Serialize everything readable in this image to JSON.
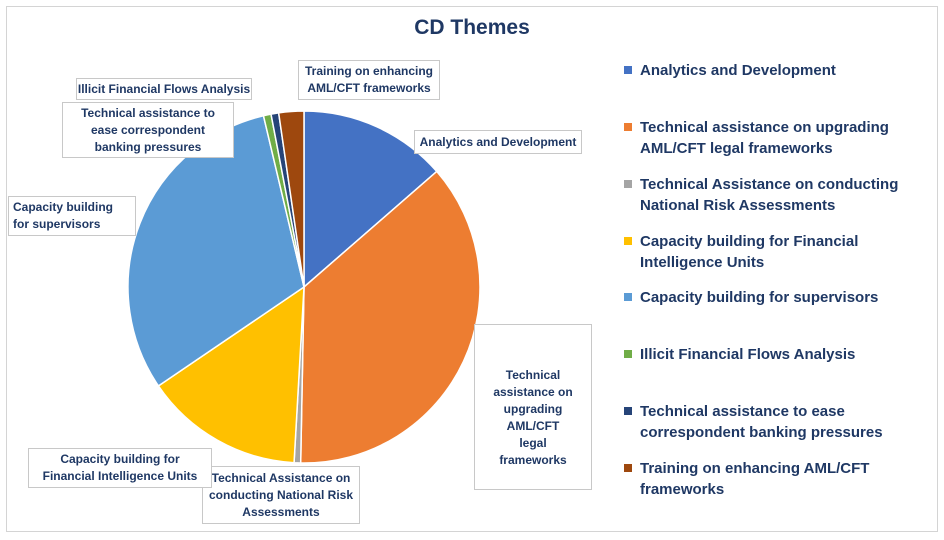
{
  "chart_data": {
    "type": "pie",
    "title": "CD Themes",
    "series": [
      {
        "values": [
          13.6,
          36.7,
          0.6,
          14.6,
          30.8,
          0.7,
          0.7,
          2.3
        ],
        "labels": [
          "Analytics and Development",
          "Technical assistance on upgrading AML/CFT legal frameworks",
          "Technical Assistance on conducting National Risk Assessments",
          "Capacity building for Financial Intelligence Units",
          "Capacity building for supervisors",
          "Illicit Financial Flows Analysis",
          "Technical assistance to ease correspondent banking pressures",
          "Training on enhancing AML/CFT frameworks"
        ],
        "colors": [
          "#4472c4",
          "#ed7d31",
          "#a5a5a5",
          "#ffc000",
          "#5b9bd5",
          "#70ad47",
          "#264478",
          "#9e480e"
        ]
      }
    ],
    "legend": "right"
  },
  "callouts": [
    "Analytics and Development",
    "Technical assistance on upgrading AML/CFT legal frameworks",
    "Technical Assistance on conducting National Risk Assessments",
    "Capacity building for Financial Intelligence Units",
    "Capacity building for supervisors",
    "Illicit Financial Flows Analysis",
    "Technical assistance to ease correspondent banking pressures",
    "Training on enhancing AML/CFT frameworks"
  ],
  "legend_items": [
    {
      "label": "Analytics and Development",
      "color": "#4472c4"
    },
    {
      "label": "Technical assistance on upgrading AML/CFT legal frameworks",
      "color": "#ed7d31"
    },
    {
      "label": "Technical Assistance on conducting National Risk Assessments",
      "color": "#a5a5a5"
    },
    {
      "label": "Capacity building for Financial Intelligence Units",
      "color": "#ffc000"
    },
    {
      "label": "Capacity building for supervisors",
      "color": "#5b9bd5"
    },
    {
      "label": "Illicit Financial Flows Analysis",
      "color": "#70ad47"
    },
    {
      "label": "Technical assistance to ease correspondent banking pressures",
      "color": "#264478"
    },
    {
      "label": "Training on enhancing AML/CFT frameworks",
      "color": "#9e480e"
    }
  ]
}
